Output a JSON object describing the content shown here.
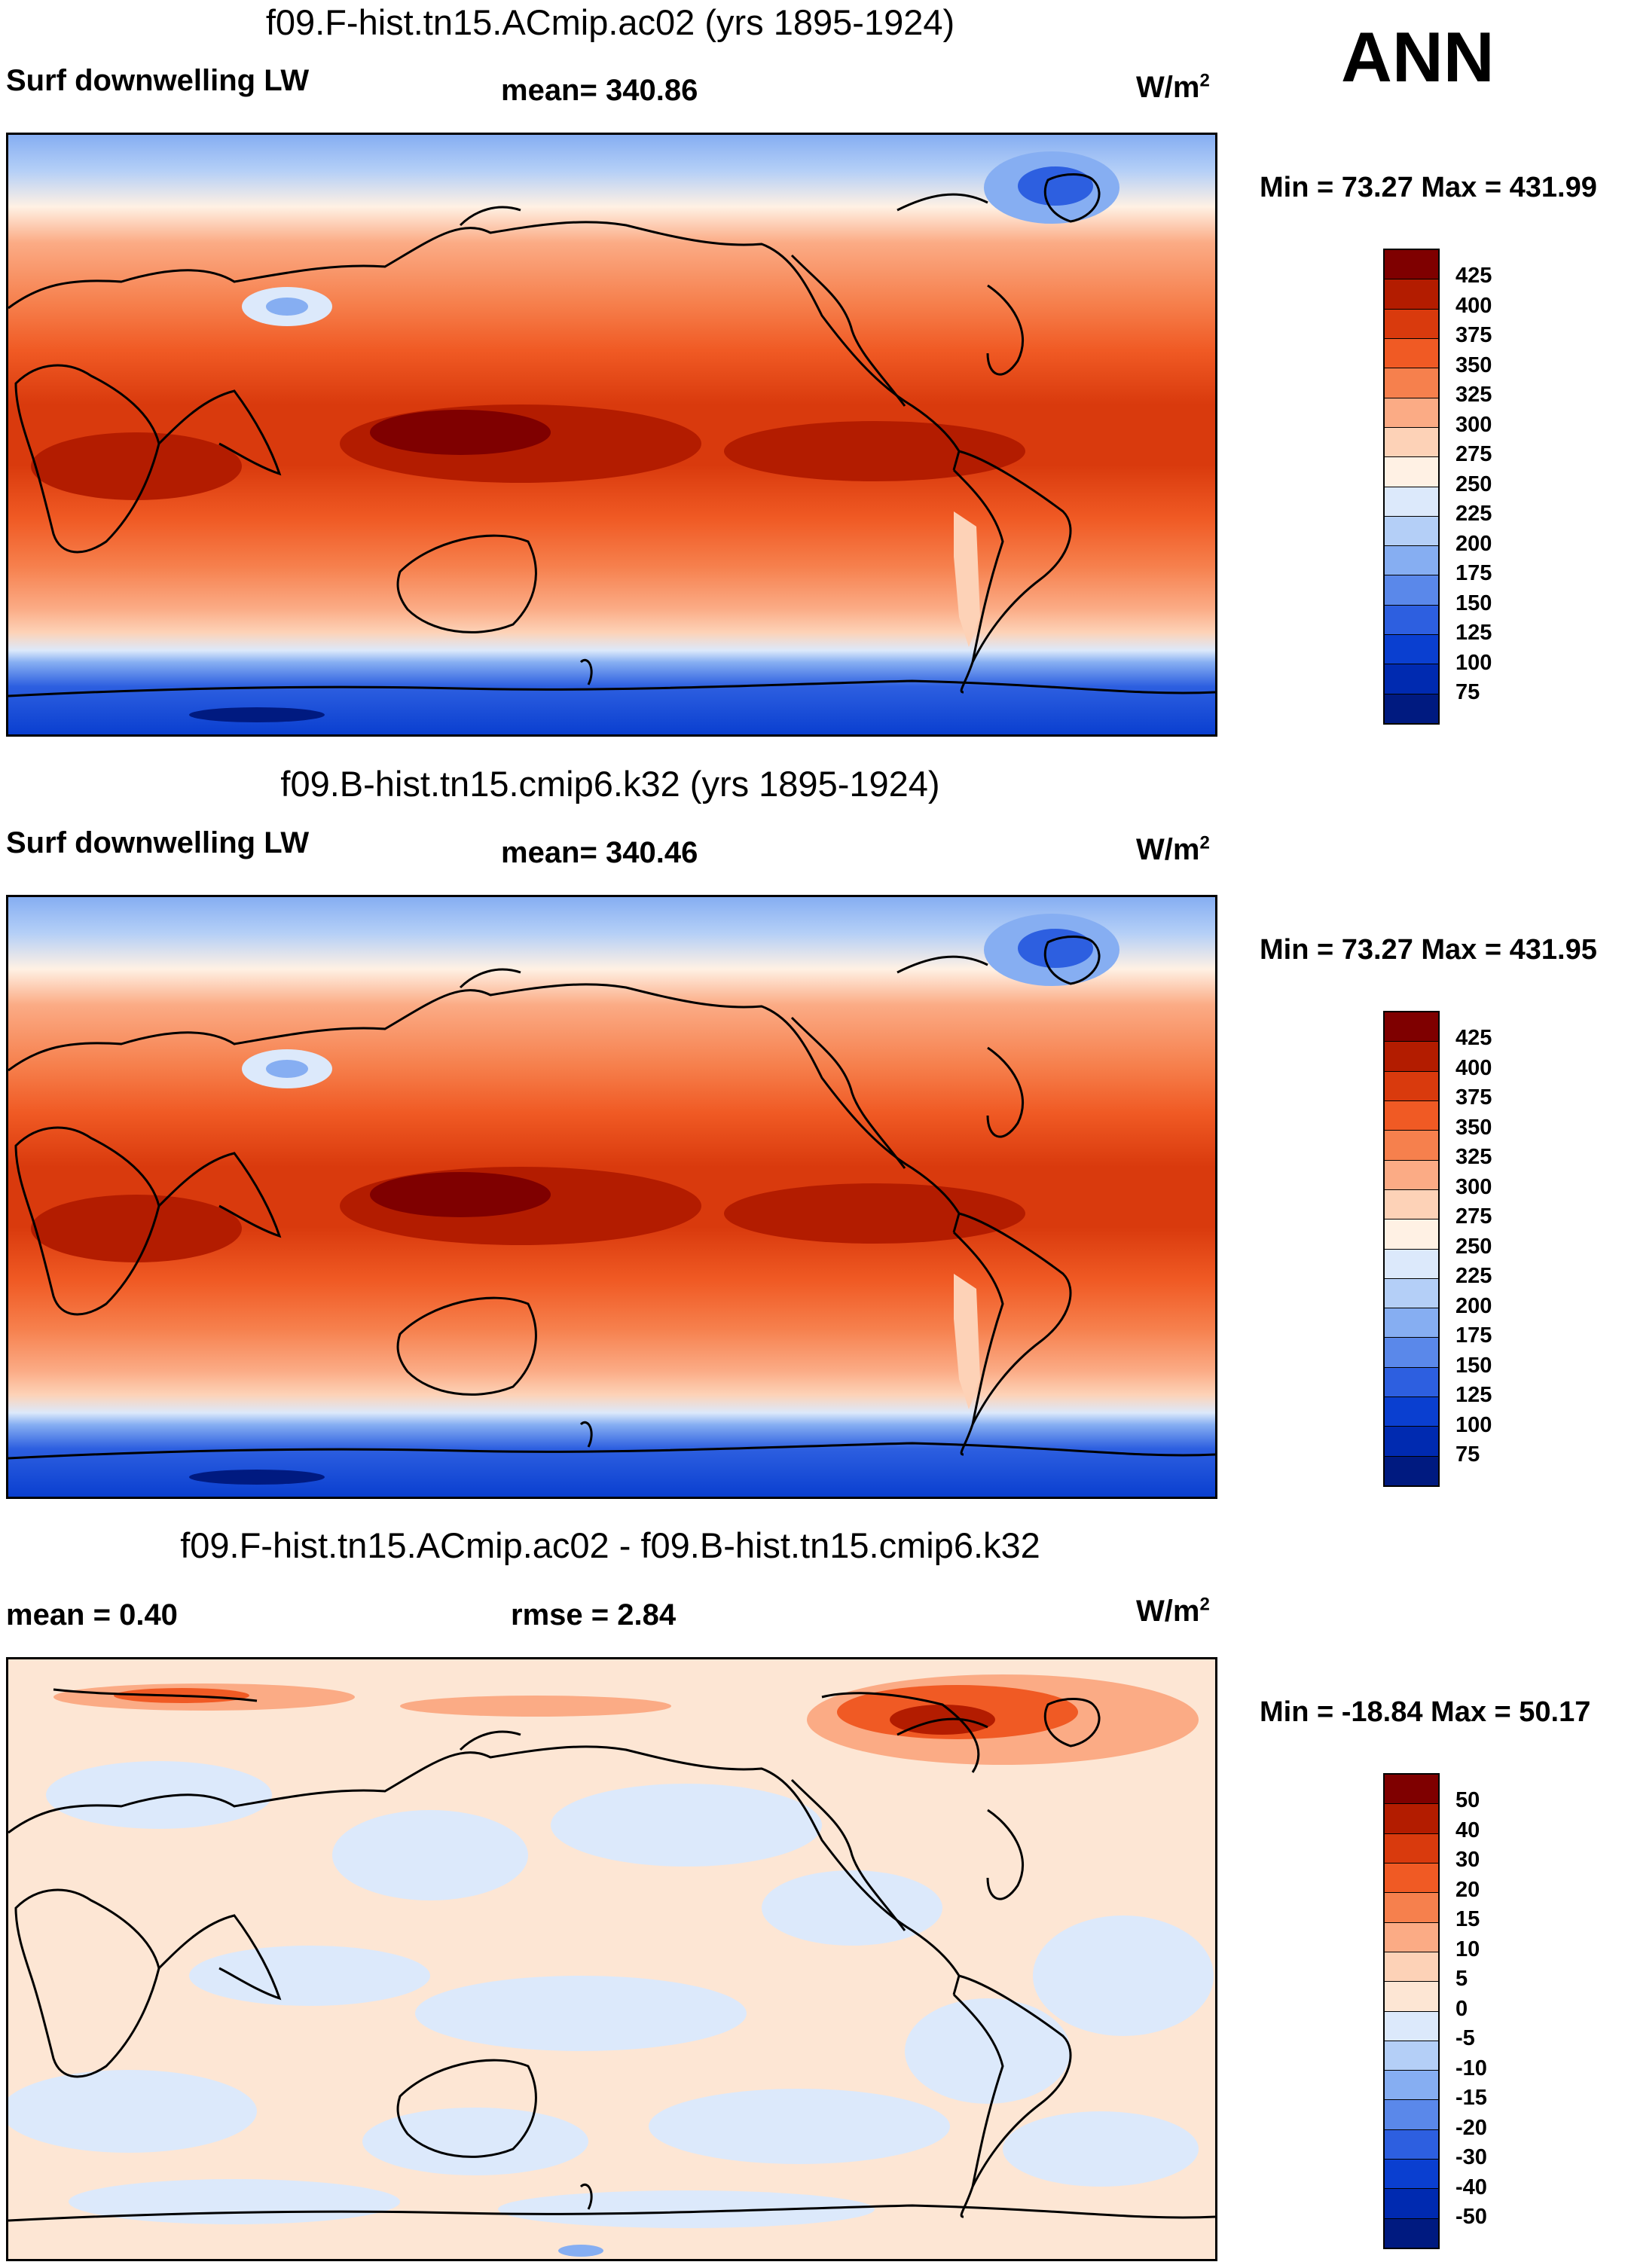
{
  "figure": {
    "season_label": "ANN",
    "units_base": "W/m",
    "units_exp": "2"
  },
  "panels": [
    {
      "id": "top",
      "title": "f09.F-hist.tn15.ACmip.ac02 (yrs 1895-1924)",
      "left_label": "Surf downwelling LW",
      "center_label": "mean= 340.86",
      "minmax": "Min =  73.27 Max = 431.99",
      "colorbar_labels": [
        "425",
        "400",
        "375",
        "350",
        "325",
        "300",
        "275",
        "250",
        "225",
        "200",
        "175",
        "150",
        "125",
        "100",
        "75"
      ]
    },
    {
      "id": "middle",
      "title": "f09.B-hist.tn15.cmip6.k32 (yrs 1895-1924)",
      "left_label": "Surf downwelling LW",
      "center_label": "mean= 340.46",
      "minmax": "Min =  73.27 Max = 431.95",
      "colorbar_labels": [
        "425",
        "400",
        "375",
        "350",
        "325",
        "300",
        "275",
        "250",
        "225",
        "200",
        "175",
        "150",
        "125",
        "100",
        "75"
      ]
    },
    {
      "id": "bottom",
      "title": "f09.F-hist.tn15.ACmip.ac02 - f09.B-hist.tn15.cmip6.k32",
      "left_label": "mean =   0.40",
      "center_label": "rmse =   2.84",
      "minmax": "Min = -18.84 Max =  50.17",
      "colorbar_labels": [
        "50",
        "40",
        "30",
        "20",
        "15",
        "10",
        "5",
        "0",
        "-5",
        "-10",
        "-15",
        "-20",
        "-30",
        "-40",
        "-50"
      ]
    }
  ],
  "colors": {
    "abs_scale": [
      "#7f0000",
      "#b31c00",
      "#d93a0d",
      "#f05a24",
      "#f6804d",
      "#fbab85",
      "#fdd2b7",
      "#fff1e4",
      "#dce9fb",
      "#b4cff7",
      "#86aef2",
      "#5a88ea",
      "#2d5fe0",
      "#0a3fd0",
      "#002ab0",
      "#001a80"
    ],
    "diff_scale": [
      "#7f0000",
      "#b31c00",
      "#d93a0d",
      "#f05a24",
      "#f6804d",
      "#fbab85",
      "#fdd2b7",
      "#fde6d4",
      "#dce9fb",
      "#b4cff7",
      "#86aef2",
      "#5a88ea",
      "#2d5fe0",
      "#0a3fd0",
      "#002ab0",
      "#001a80"
    ]
  }
}
